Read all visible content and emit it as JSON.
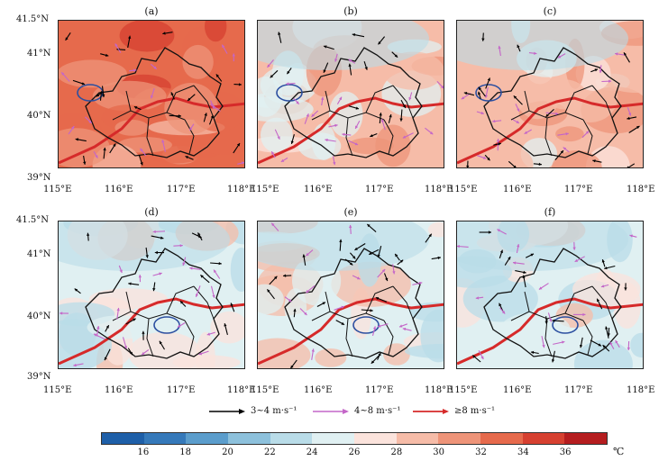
{
  "panels": [
    {
      "id": "a",
      "label": "(a)",
      "tone": "warm"
    },
    {
      "id": "b",
      "label": "(b)",
      "tone": "mild"
    },
    {
      "id": "c",
      "label": "(c)",
      "tone": "mild"
    },
    {
      "id": "d",
      "label": "(d)",
      "tone": "cool"
    },
    {
      "id": "e",
      "label": "(e)",
      "tone": "cool"
    },
    {
      "id": "f",
      "label": "(f)",
      "tone": "cool"
    }
  ],
  "axes": {
    "x_ticks": [
      "115°E",
      "116°E",
      "117°E",
      "118°E"
    ],
    "y_ticks_top": [
      "41.5°N",
      "41°N",
      "40°N",
      "39°N"
    ],
    "y_ticks_bottom": [
      "41.5°N",
      "41°N",
      "40°N",
      "39°N"
    ]
  },
  "legend": {
    "items": [
      {
        "label": "3~4 m·s⁻¹",
        "color": "#000000"
      },
      {
        "label": "4~8 m·s⁻¹",
        "color": "#c466c8"
      },
      {
        "label": "≥8 m·s⁻¹",
        "color": "#d62a2a"
      }
    ]
  },
  "colorbar": {
    "unit": "℃",
    "labels": [
      "16",
      "18",
      "20",
      "22",
      "24",
      "26",
      "28",
      "30",
      "32",
      "34",
      "36"
    ],
    "colors": [
      "#1e5fa8",
      "#3579ba",
      "#5b9dcc",
      "#8dc1dc",
      "#b9dce8",
      "#e0f0f2",
      "#fbe3dc",
      "#f6bca8",
      "#ee9479",
      "#e66a4c",
      "#d64030",
      "#b51d1f"
    ]
  }
}
